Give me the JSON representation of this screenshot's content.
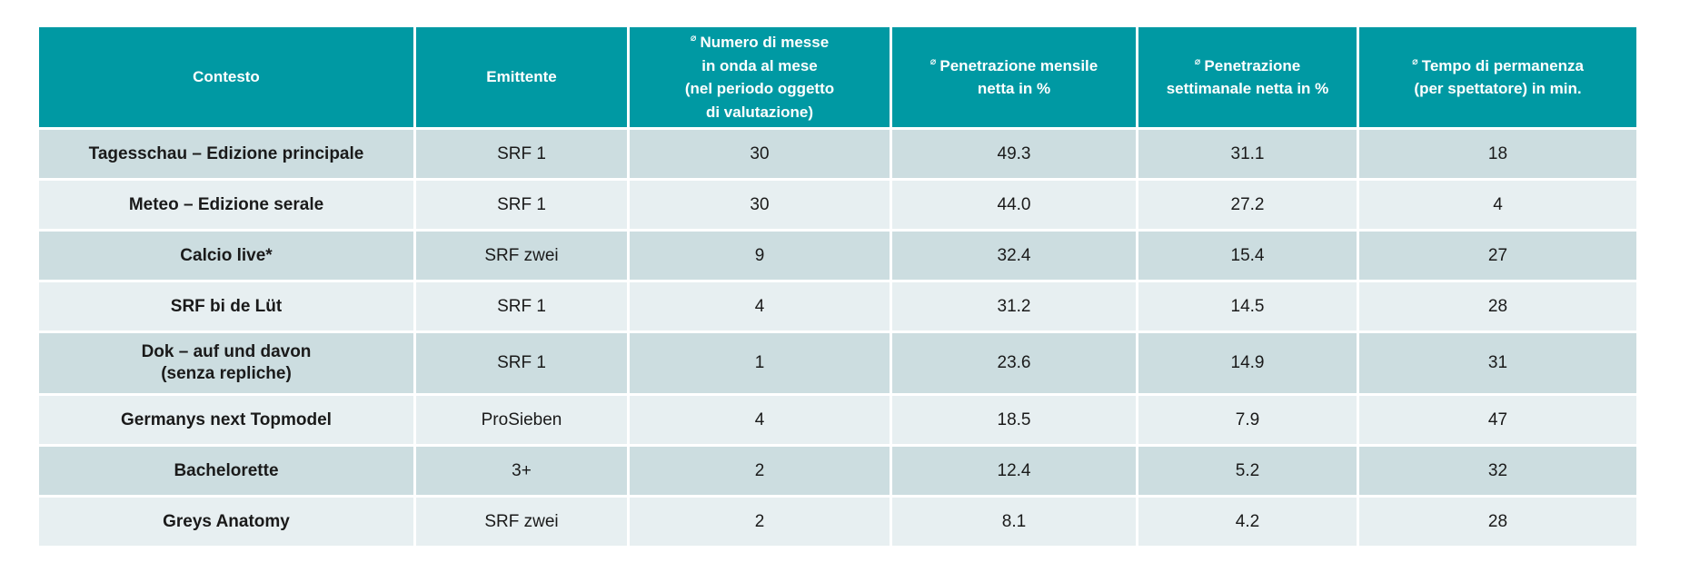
{
  "colors": {
    "header_bg": "#0099a3",
    "header_text": "#ffffff",
    "row_odd_bg": "#ccdde0",
    "row_even_bg": "#e7eff1",
    "body_text": "#1a1a1a"
  },
  "chart_data": {
    "type": "table",
    "columns": [
      {
        "sup": "",
        "label": "Contesto"
      },
      {
        "sup": "",
        "label": "Emittente"
      },
      {
        "sup": "⌀",
        "label": "Numero di messe\nin onda al mese\n(nel periodo oggetto\ndi valutazione)"
      },
      {
        "sup": "⌀",
        "label": "Penetrazione mensile\nnetta in %"
      },
      {
        "sup": "⌀",
        "label": "Penetrazione\nsettimanale netta in %"
      },
      {
        "sup": "⌀",
        "label": "Tempo di permanenza\n(per spettatore) in min."
      }
    ],
    "rows": [
      [
        "Tagesschau – Edizione principale",
        "SRF 1",
        "30",
        "49.3",
        "31.1",
        "18"
      ],
      [
        "Meteo – Edizione serale",
        "SRF 1",
        "30",
        "44.0",
        "27.2",
        "4"
      ],
      [
        "Calcio live*",
        "SRF zwei",
        "9",
        "32.4",
        "15.4",
        "27"
      ],
      [
        "SRF bi de Lüt",
        "SRF 1",
        "4",
        "31.2",
        "14.5",
        "28"
      ],
      [
        "Dok – auf und davon\n(senza repliche)",
        "SRF 1",
        "1",
        "23.6",
        "14.9",
        "31"
      ],
      [
        "Germanys next Topmodel",
        "ProSieben",
        "4",
        "18.5",
        "7.9",
        "47"
      ],
      [
        "Bachelorette",
        "3+",
        "2",
        "12.4",
        "5.2",
        "32"
      ],
      [
        "Greys Anatomy",
        "SRF zwei",
        "2",
        "8.1",
        "4.2",
        "28"
      ]
    ]
  }
}
